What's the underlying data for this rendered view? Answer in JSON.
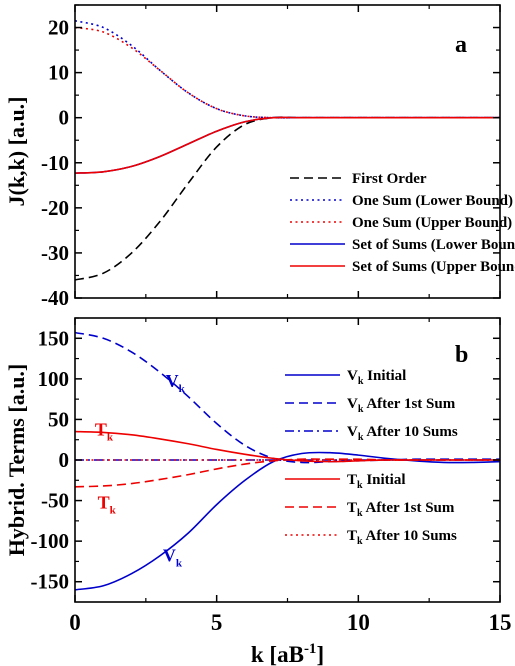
{
  "chart_data": [
    {
      "type": "line",
      "panel_label": "a",
      "ylabel": "J(k,k) [a.u.]",
      "xlabel": "",
      "xlim": [
        0,
        15
      ],
      "ylim": [
        -40,
        25
      ],
      "x_ticks": [
        "0",
        "5",
        "10",
        "15"
      ],
      "y_ticks": [
        "20",
        "10",
        "0",
        "-10",
        "-20",
        "-30",
        "-40"
      ],
      "y_tick_values": [
        20,
        10,
        0,
        -10,
        -20,
        -30,
        -40
      ],
      "grid": false,
      "legend_position": "bottom-right",
      "x": [
        0,
        1,
        2,
        3,
        4,
        5,
        6,
        7,
        8,
        10,
        12,
        15
      ],
      "series": [
        {
          "name": "First Order",
          "color": "#000000",
          "dash": "dashed",
          "values": [
            -36,
            -34.5,
            -30,
            -23,
            -14.5,
            -6.5,
            -1.5,
            0,
            0,
            0,
            0,
            0
          ]
        },
        {
          "name": "One Sum (Lower Bound)",
          "color": "#0000cc",
          "dash": "dotted",
          "values": [
            21.5,
            20,
            16,
            10.5,
            5.5,
            2,
            0.4,
            0,
            0,
            0,
            0,
            0
          ]
        },
        {
          "name": "One Sum (Upper Bound)",
          "color": "#ee0000",
          "dash": "dotted",
          "values": [
            20,
            19,
            15.5,
            10.5,
            5.5,
            2,
            0.4,
            0,
            0,
            0,
            0,
            0
          ]
        },
        {
          "name": "Set of Sums (Lower Bound)",
          "color": "#0000cc",
          "dash": "solid",
          "values": [
            -12.3,
            -12,
            -10.8,
            -8.6,
            -5.8,
            -3,
            -0.9,
            0,
            0,
            0,
            0,
            0
          ]
        },
        {
          "name": "Set of Sums (Upper Bound)",
          "color": "#ee0000",
          "dash": "solid",
          "values": [
            -12.3,
            -12,
            -10.8,
            -8.6,
            -5.8,
            -3,
            -0.9,
            0,
            0,
            0,
            0,
            0
          ]
        }
      ]
    },
    {
      "type": "line",
      "panel_label": "b",
      "ylabel": "Hybrid. Terms [a.u.]",
      "xlabel": "k [aB",
      "xlabel_sup": "-1",
      "xlabel_end": "]",
      "xlim": [
        0,
        15
      ],
      "ylim": [
        -175,
        175
      ],
      "x_ticks": [
        "0",
        "5",
        "10",
        "15"
      ],
      "y_ticks": [
        "150",
        "100",
        "50",
        "0",
        "-50",
        "-100",
        "-150"
      ],
      "y_tick_values": [
        150,
        100,
        50,
        0,
        -50,
        -100,
        -150
      ],
      "grid": false,
      "legend_position": "right",
      "x": [
        0,
        1,
        2,
        3,
        4,
        5,
        6,
        7,
        8,
        9,
        10,
        11,
        12,
        13,
        14,
        15
      ],
      "series": [
        {
          "name_main": "V",
          "name_sub": "k",
          "name_rest": " Initial",
          "color": "#0000cc",
          "dash": "solid",
          "values": [
            -160,
            -155,
            -140,
            -118,
            -90,
            -55,
            -25,
            -2,
            8,
            9,
            6,
            2,
            -1,
            -3,
            -3,
            -2
          ]
        },
        {
          "name_main": "V",
          "name_sub": "k",
          "name_rest": " After 1st Sum",
          "color": "#0000cc",
          "dash": "dashed",
          "values": [
            157,
            150,
            133,
            108,
            78,
            45,
            18,
            2,
            -3,
            -2,
            -1,
            0,
            1,
            1,
            1,
            1
          ]
        },
        {
          "name_main": "V",
          "name_sub": "k",
          "name_rest": " After 10 Sums",
          "color": "#0000cc",
          "dash": "dashdot",
          "values": [
            0,
            0,
            0,
            0,
            0,
            0,
            0,
            0,
            0,
            0,
            0,
            0,
            0,
            0,
            0,
            0
          ]
        },
        {
          "name_main": "T",
          "name_sub": "k",
          "name_rest": " Initial",
          "color": "#ee0000",
          "dash": "solid",
          "values": [
            35,
            34,
            31,
            26,
            20,
            13,
            7,
            2,
            -1,
            -2,
            -1,
            0,
            0,
            0,
            0,
            0
          ]
        },
        {
          "name_main": "T",
          "name_sub": "k",
          "name_rest": " After 1st Sum",
          "color": "#ee0000",
          "dash": "dashed",
          "values": [
            -33,
            -32,
            -29,
            -24,
            -18,
            -11,
            -5,
            -1,
            1,
            1,
            1,
            0,
            0,
            0,
            0,
            0
          ]
        },
        {
          "name_main": "T",
          "name_sub": "k",
          "name_rest": " After 10 Sums",
          "color": "#ee0000",
          "dash": "dotted",
          "values": [
            0,
            0,
            0,
            0,
            0,
            0,
            0,
            0,
            0,
            0,
            0,
            0,
            0,
            0,
            0,
            0
          ]
        }
      ],
      "annotations": [
        {
          "main": "V",
          "sub": "k",
          "color": "#0000cc",
          "x": 3.2,
          "y": 90
        },
        {
          "main": "T",
          "sub": "k",
          "color": "#ee0000",
          "x": 0.7,
          "y": 30
        },
        {
          "main": "T",
          "sub": "k",
          "color": "#ee0000",
          "x": 0.8,
          "y": -60
        },
        {
          "main": "V",
          "sub": "k",
          "color": "#0000cc",
          "x": 3.1,
          "y": -125
        }
      ]
    }
  ]
}
